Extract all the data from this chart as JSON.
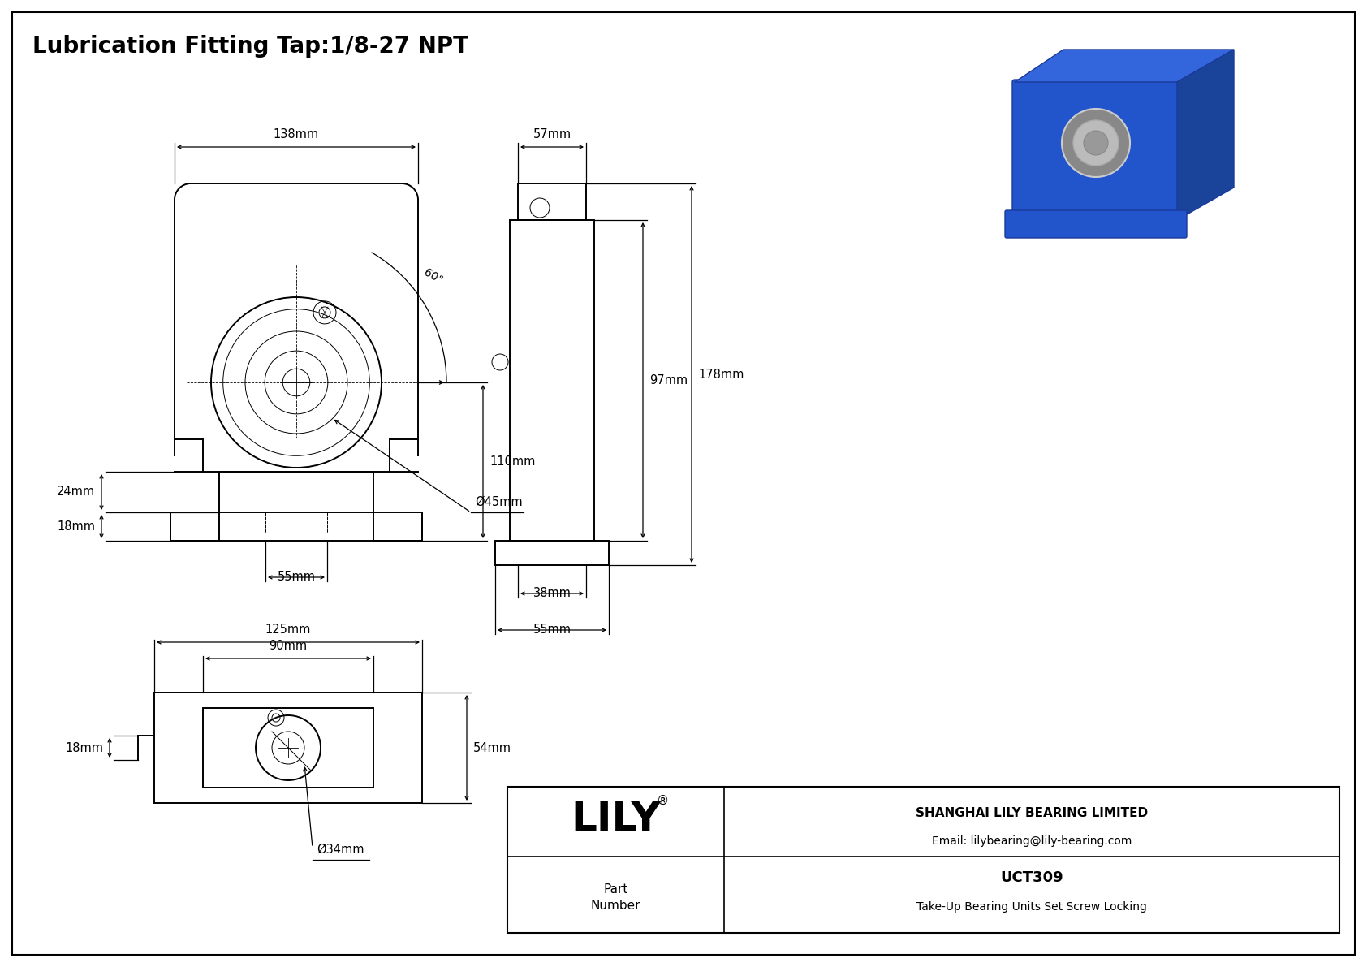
{
  "title": "Lubrication Fitting Tap:1/8-27 NPT",
  "bg_color": "#ffffff",
  "line_color": "#000000",
  "dims": {
    "top_width": "138mm",
    "height_right": "110mm",
    "height_left": "24mm",
    "height_bottom": "18mm",
    "width_bottom": "55mm",
    "bore": "Ø45mm",
    "side_top": "57mm",
    "side_height1": "97mm",
    "side_total": "178mm",
    "side_w1": "38mm",
    "side_w2": "55mm",
    "bot_w1": "125mm",
    "bot_w2": "90mm",
    "bot_h": "54mm",
    "bot_h2": "18mm",
    "bot_bore": "Ø34mm",
    "angle": "60°"
  },
  "title_block": {
    "company": "SHANGHAI LILY BEARING LIMITED",
    "email": "Email: lilybearing@lily-bearing.com",
    "part_label": "Part\nNumber",
    "part_number": "UCT309",
    "description": "Take-Up Bearing Units Set Screw Locking",
    "logo": "LILY",
    "logo_super": "®"
  },
  "font_size_title": 20,
  "font_size_dim": 10.5,
  "font_size_block": 10
}
